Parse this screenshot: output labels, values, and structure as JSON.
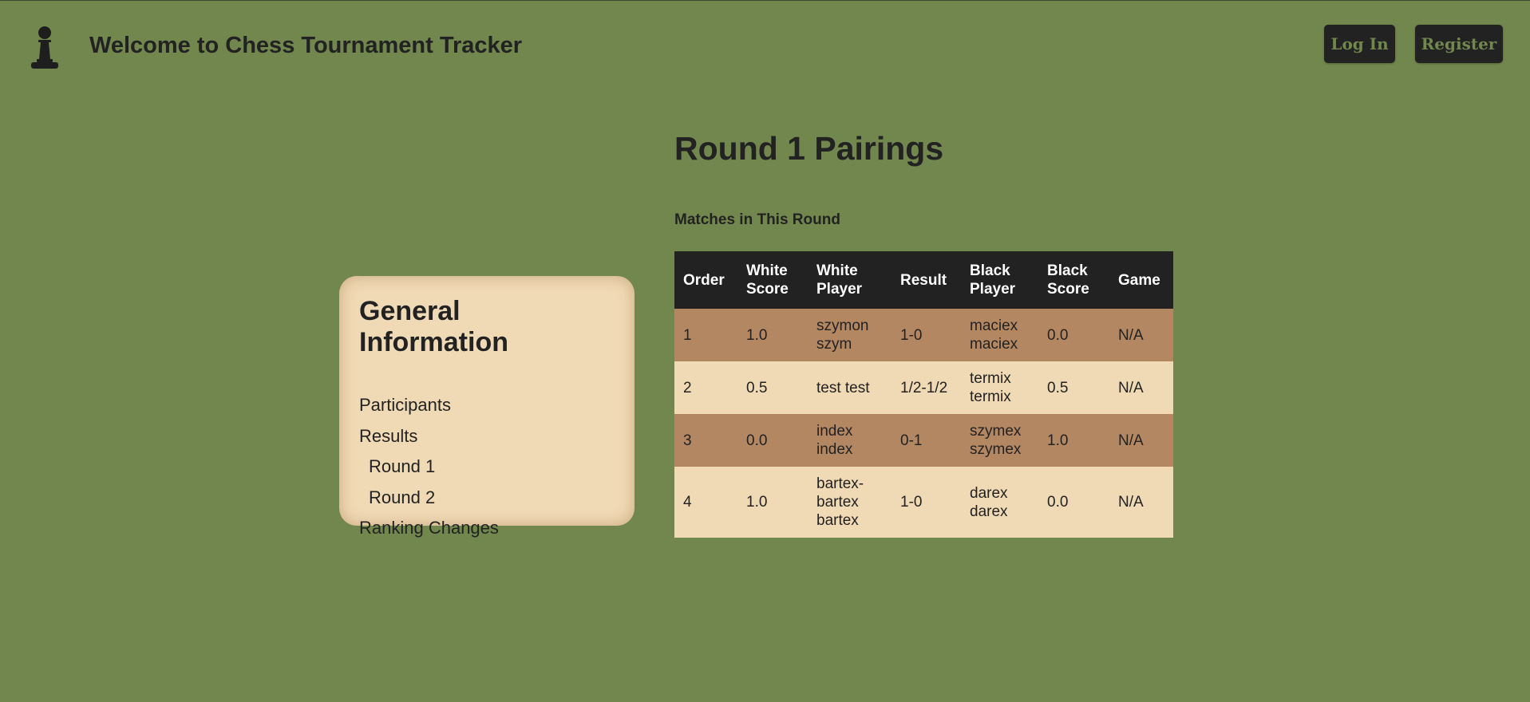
{
  "header": {
    "title": "Welcome to Chess Tournament Tracker",
    "logo_icon": "pawn-icon",
    "login_label": "Log In",
    "register_label": "Register"
  },
  "sidebar": {
    "title": "General Information",
    "items": [
      {
        "label": "Participants"
      },
      {
        "label": "Results"
      },
      {
        "label": "Round 1"
      },
      {
        "label": "Round 2"
      },
      {
        "label": "Ranking Changes"
      }
    ]
  },
  "main": {
    "title": "Round 1 Pairings",
    "subtitle": "Matches in This Round",
    "columns": [
      "Order",
      "White Score",
      "White Player",
      "Result",
      "Black Player",
      "Black Score",
      "Game"
    ],
    "rows": [
      {
        "order": "1",
        "white_score": "1.0",
        "white_player": "szymon szym",
        "result": "1-0",
        "black_player": "maciex maciex",
        "black_score": "0.0",
        "game": "N/A"
      },
      {
        "order": "2",
        "white_score": "0.5",
        "white_player": "test test",
        "result": "1/2-1/2",
        "black_player": "termix termix",
        "black_score": "0.5",
        "game": "N/A"
      },
      {
        "order": "3",
        "white_score": "0.0",
        "white_player": "index index",
        "result": "0-1",
        "black_player": "szymex szymex",
        "black_score": "1.0",
        "game": "N/A"
      },
      {
        "order": "4",
        "white_score": "1.0",
        "white_player": "bartex-bartex bartex",
        "result": "1-0",
        "black_player": "darex darex",
        "black_score": "0.0",
        "game": "N/A"
      }
    ]
  },
  "colors": {
    "background": "#71874d",
    "dark": "#222222",
    "light_square": "#f0d9b5",
    "dark_square": "#b48763"
  }
}
